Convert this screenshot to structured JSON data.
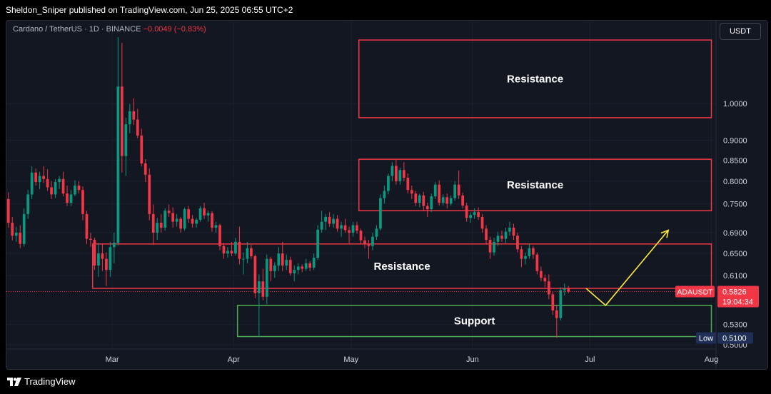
{
  "header": {
    "publish_text": "Sheldon_Sniper published on TradingView.com, Jun 25, 2025 06:55 UTC+2"
  },
  "legend": {
    "symbol": "Cardano / TetherUS · 1D · BINANCE",
    "change": "−0.0049 (−0.83%)"
  },
  "currency_button": "USDT",
  "branding": {
    "logo_text": "TradingView"
  },
  "chart_data": {
    "type": "candlestick",
    "symbol": "ADAUSDT",
    "exchange": "BINANCE",
    "timeframe": "1D",
    "x_ticks": [
      "Mar",
      "Apr",
      "May",
      "Jun",
      "Jul",
      "Aug"
    ],
    "y_scale": "log",
    "y_ticks": [
      "1.0000",
      "0.9000",
      "0.8500",
      "0.8000",
      "0.7500",
      "0.6900",
      "0.6500",
      "0.6100",
      "0.5300",
      "0.5000"
    ],
    "ylim": [
      0.495,
      1.22
    ],
    "x_range": [
      "2025-02-02",
      "2025-08-02"
    ],
    "last_price": {
      "label": "ADAUSDT",
      "value": "0.5826",
      "countdown": "19:04:34"
    },
    "low_marker": {
      "label": "Low",
      "value": "0.5100"
    },
    "zones": [
      {
        "label": "Resistance",
        "type": "resistance",
        "start": "2025-05-03",
        "end": "2025-08-01",
        "top": 1.2,
        "bottom": 0.96,
        "color": "#f23645"
      },
      {
        "label": "Resistance",
        "type": "resistance",
        "start": "2025-05-03",
        "end": "2025-08-01",
        "top": 0.852,
        "bottom": 0.735,
        "color": "#f23645"
      },
      {
        "label": "Resistance",
        "type": "resistance",
        "start": "2025-02-24",
        "end": "2025-08-01",
        "top": 0.668,
        "bottom": 0.588,
        "color": "#f23645"
      },
      {
        "label": "Support",
        "type": "support",
        "start": "2025-04-02",
        "end": "2025-08-01",
        "top": 0.56,
        "bottom": 0.512,
        "color": "#4caf50"
      }
    ],
    "projection": {
      "color": "#ffeb3b",
      "points": [
        [
          "2025-06-30",
          0.588
        ],
        [
          "2025-07-05",
          0.56
        ],
        [
          "2025-07-21",
          0.695
        ]
      ]
    },
    "candles": [
      [
        "2025-02-02",
        0.76,
        0.775,
        0.7,
        0.71
      ],
      [
        "2025-02-03",
        0.71,
        0.722,
        0.675,
        0.684
      ],
      [
        "2025-02-04",
        0.684,
        0.702,
        0.672,
        0.69
      ],
      [
        "2025-02-05",
        0.69,
        0.705,
        0.66,
        0.668
      ],
      [
        "2025-02-06",
        0.668,
        0.74,
        0.663,
        0.728
      ],
      [
        "2025-02-07",
        0.728,
        0.78,
        0.718,
        0.77
      ],
      [
        "2025-02-08",
        0.77,
        0.835,
        0.76,
        0.82
      ],
      [
        "2025-02-09",
        0.82,
        0.83,
        0.79,
        0.798
      ],
      [
        "2025-02-10",
        0.798,
        0.822,
        0.782,
        0.812
      ],
      [
        "2025-02-11",
        0.812,
        0.835,
        0.796,
        0.805
      ],
      [
        "2025-02-12",
        0.805,
        0.828,
        0.778,
        0.786
      ],
      [
        "2025-02-13",
        0.786,
        0.8,
        0.76,
        0.77
      ],
      [
        "2025-02-14",
        0.77,
        0.805,
        0.762,
        0.798
      ],
      [
        "2025-02-15",
        0.798,
        0.812,
        0.782,
        0.805
      ],
      [
        "2025-02-16",
        0.805,
        0.822,
        0.766,
        0.772
      ],
      [
        "2025-02-17",
        0.772,
        0.79,
        0.745,
        0.752
      ],
      [
        "2025-02-18",
        0.752,
        0.78,
        0.745,
        0.77
      ],
      [
        "2025-02-19",
        0.77,
        0.802,
        0.766,
        0.79
      ],
      [
        "2025-02-20",
        0.79,
        0.8,
        0.772,
        0.78
      ],
      [
        "2025-02-21",
        0.78,
        0.788,
        0.715,
        0.728
      ],
      [
        "2025-02-22",
        0.728,
        0.735,
        0.668,
        0.678
      ],
      [
        "2025-02-23",
        0.678,
        0.69,
        0.662,
        0.676
      ],
      [
        "2025-02-24",
        0.676,
        0.68,
        0.62,
        0.628
      ],
      [
        "2025-02-25",
        0.628,
        0.67,
        0.608,
        0.65
      ],
      [
        "2025-02-26",
        0.65,
        0.668,
        0.618,
        0.64
      ],
      [
        "2025-02-27",
        0.64,
        0.652,
        0.592,
        0.62
      ],
      [
        "2025-02-28",
        0.62,
        0.672,
        0.608,
        0.662
      ],
      [
        "2025-03-01",
        0.662,
        0.69,
        0.632,
        0.67
      ],
      [
        "2025-03-02",
        0.67,
        1.21,
        0.665,
        1.05
      ],
      [
        "2025-03-03",
        1.05,
        1.19,
        0.82,
        0.86
      ],
      [
        "2025-03-04",
        0.86,
        0.96,
        0.812,
        0.942
      ],
      [
        "2025-03-05",
        0.942,
        0.998,
        0.918,
        0.978
      ],
      [
        "2025-03-06",
        0.978,
        1.015,
        0.94,
        0.955
      ],
      [
        "2025-03-07",
        0.955,
        0.985,
        0.905,
        0.912
      ],
      [
        "2025-03-08",
        0.912,
        0.93,
        0.835,
        0.842
      ],
      [
        "2025-03-09",
        0.842,
        0.852,
        0.798,
        0.815
      ],
      [
        "2025-03-10",
        0.815,
        0.83,
        0.715,
        0.728
      ],
      [
        "2025-03-11",
        0.728,
        0.748,
        0.666,
        0.69
      ],
      [
        "2025-03-12",
        0.69,
        0.72,
        0.676,
        0.71
      ],
      [
        "2025-03-13",
        0.71,
        0.728,
        0.69,
        0.7
      ],
      [
        "2025-03-14",
        0.7,
        0.74,
        0.694,
        0.735
      ],
      [
        "2025-03-15",
        0.735,
        0.748,
        0.722,
        0.73
      ],
      [
        "2025-03-16",
        0.73,
        0.742,
        0.7,
        0.712
      ],
      [
        "2025-03-17",
        0.712,
        0.728,
        0.702,
        0.718
      ],
      [
        "2025-03-18",
        0.718,
        0.722,
        0.69,
        0.698
      ],
      [
        "2025-03-19",
        0.698,
        0.742,
        0.694,
        0.738
      ],
      [
        "2025-03-20",
        0.738,
        0.745,
        0.71,
        0.718
      ],
      [
        "2025-03-21",
        0.718,
        0.726,
        0.7,
        0.708
      ],
      [
        "2025-03-22",
        0.708,
        0.72,
        0.7,
        0.716
      ],
      [
        "2025-03-23",
        0.716,
        0.745,
        0.712,
        0.74
      ],
      [
        "2025-03-24",
        0.74,
        0.752,
        0.718,
        0.725
      ],
      [
        "2025-03-25",
        0.725,
        0.735,
        0.712,
        0.73
      ],
      [
        "2025-03-26",
        0.73,
        0.734,
        0.692,
        0.7
      ],
      [
        "2025-03-27",
        0.7,
        0.712,
        0.69,
        0.705
      ],
      [
        "2025-03-28",
        0.705,
        0.708,
        0.656,
        0.664
      ],
      [
        "2025-03-29",
        0.664,
        0.67,
        0.64,
        0.65
      ],
      [
        "2025-03-30",
        0.65,
        0.662,
        0.642,
        0.655
      ],
      [
        "2025-03-31",
        0.655,
        0.672,
        0.645,
        0.65
      ],
      [
        "2025-04-01",
        0.65,
        0.68,
        0.646,
        0.672
      ],
      [
        "2025-04-02",
        0.672,
        0.702,
        0.63,
        0.64
      ],
      [
        "2025-04-03",
        0.64,
        0.652,
        0.612,
        0.64
      ],
      [
        "2025-04-04",
        0.64,
        0.672,
        0.632,
        0.66
      ],
      [
        "2025-04-05",
        0.66,
        0.666,
        0.64,
        0.645
      ],
      [
        "2025-04-06",
        0.645,
        0.648,
        0.572,
        0.58
      ],
      [
        "2025-04-07",
        0.58,
        0.612,
        0.512,
        0.6
      ],
      [
        "2025-04-08",
        0.6,
        0.622,
        0.568,
        0.574
      ],
      [
        "2025-04-09",
        0.574,
        0.648,
        0.562,
        0.64
      ],
      [
        "2025-04-10",
        0.64,
        0.644,
        0.6,
        0.618
      ],
      [
        "2025-04-11",
        0.618,
        0.634,
        0.606,
        0.628
      ],
      [
        "2025-04-12",
        0.628,
        0.662,
        0.618,
        0.65
      ],
      [
        "2025-04-13",
        0.65,
        0.672,
        0.618,
        0.628
      ],
      [
        "2025-04-14",
        0.628,
        0.648,
        0.62,
        0.638
      ],
      [
        "2025-04-15",
        0.638,
        0.644,
        0.61,
        0.614
      ],
      [
        "2025-04-16",
        0.614,
        0.628,
        0.6,
        0.62
      ],
      [
        "2025-04-17",
        0.62,
        0.632,
        0.612,
        0.626
      ],
      [
        "2025-04-18",
        0.626,
        0.63,
        0.616,
        0.622
      ],
      [
        "2025-04-19",
        0.622,
        0.64,
        0.618,
        0.632
      ],
      [
        "2025-04-20",
        0.632,
        0.636,
        0.618,
        0.624
      ],
      [
        "2025-04-21",
        0.624,
        0.65,
        0.62,
        0.642
      ],
      [
        "2025-04-22",
        0.642,
        0.705,
        0.638,
        0.696
      ],
      [
        "2025-04-23",
        0.696,
        0.735,
        0.69,
        0.712
      ],
      [
        "2025-04-24",
        0.712,
        0.728,
        0.695,
        0.722
      ],
      [
        "2025-04-25",
        0.722,
        0.732,
        0.702,
        0.708
      ],
      [
        "2025-04-26",
        0.708,
        0.728,
        0.7,
        0.718
      ],
      [
        "2025-04-27",
        0.718,
        0.726,
        0.692,
        0.698
      ],
      [
        "2025-04-28",
        0.698,
        0.712,
        0.682,
        0.705
      ],
      [
        "2025-04-29",
        0.705,
        0.718,
        0.69,
        0.695
      ],
      [
        "2025-04-30",
        0.695,
        0.702,
        0.67,
        0.69
      ],
      [
        "2025-05-01",
        0.69,
        0.712,
        0.682,
        0.705
      ],
      [
        "2025-05-02",
        0.705,
        0.712,
        0.688,
        0.694
      ],
      [
        "2025-05-03",
        0.694,
        0.698,
        0.668,
        0.675
      ],
      [
        "2025-05-04",
        0.675,
        0.682,
        0.66,
        0.668
      ],
      [
        "2025-05-05",
        0.668,
        0.676,
        0.64,
        0.664
      ],
      [
        "2025-05-06",
        0.664,
        0.69,
        0.656,
        0.682
      ],
      [
        "2025-05-07",
        0.682,
        0.705,
        0.676,
        0.698
      ],
      [
        "2025-05-08",
        0.698,
        0.77,
        0.694,
        0.762
      ],
      [
        "2025-05-09",
        0.762,
        0.79,
        0.75,
        0.778
      ],
      [
        "2025-05-10",
        0.778,
        0.818,
        0.77,
        0.812
      ],
      [
        "2025-05-11",
        0.812,
        0.845,
        0.8,
        0.836
      ],
      [
        "2025-05-12",
        0.836,
        0.85,
        0.792,
        0.8
      ],
      [
        "2025-05-13",
        0.8,
        0.832,
        0.792,
        0.826
      ],
      [
        "2025-05-14",
        0.826,
        0.845,
        0.8,
        0.808
      ],
      [
        "2025-05-15",
        0.808,
        0.818,
        0.772,
        0.78
      ],
      [
        "2025-05-16",
        0.78,
        0.79,
        0.76,
        0.772
      ],
      [
        "2025-05-17",
        0.772,
        0.778,
        0.745,
        0.752
      ],
      [
        "2025-05-18",
        0.752,
        0.772,
        0.742,
        0.768
      ],
      [
        "2025-05-19",
        0.768,
        0.776,
        0.735,
        0.745
      ],
      [
        "2025-05-20",
        0.745,
        0.752,
        0.722,
        0.738
      ],
      [
        "2025-05-21",
        0.738,
        0.772,
        0.732,
        0.766
      ],
      [
        "2025-05-22",
        0.766,
        0.798,
        0.76,
        0.792
      ],
      [
        "2025-05-23",
        0.792,
        0.802,
        0.746,
        0.752
      ],
      [
        "2025-05-24",
        0.752,
        0.77,
        0.746,
        0.764
      ],
      [
        "2025-05-25",
        0.764,
        0.772,
        0.74,
        0.75
      ],
      [
        "2025-05-26",
        0.75,
        0.768,
        0.746,
        0.762
      ],
      [
        "2025-05-27",
        0.762,
        0.8,
        0.756,
        0.792
      ],
      [
        "2025-05-28",
        0.792,
        0.825,
        0.76,
        0.768
      ],
      [
        "2025-05-29",
        0.768,
        0.774,
        0.74,
        0.746
      ],
      [
        "2025-05-30",
        0.746,
        0.752,
        0.712,
        0.72
      ],
      [
        "2025-05-31",
        0.72,
        0.732,
        0.71,
        0.726
      ],
      [
        "2025-06-01",
        0.726,
        0.74,
        0.718,
        0.732
      ],
      [
        "2025-06-02",
        0.732,
        0.742,
        0.716,
        0.722
      ],
      [
        "2025-06-03",
        0.722,
        0.728,
        0.69,
        0.698
      ],
      [
        "2025-06-04",
        0.698,
        0.705,
        0.668,
        0.676
      ],
      [
        "2025-06-05",
        0.676,
        0.682,
        0.64,
        0.652
      ],
      [
        "2025-06-06",
        0.652,
        0.68,
        0.646,
        0.672
      ],
      [
        "2025-06-07",
        0.672,
        0.692,
        0.664,
        0.684
      ],
      [
        "2025-06-08",
        0.684,
        0.694,
        0.672,
        0.678
      ],
      [
        "2025-06-09",
        0.678,
        0.7,
        0.67,
        0.692
      ],
      [
        "2025-06-10",
        0.692,
        0.712,
        0.684,
        0.7
      ],
      [
        "2025-06-11",
        0.7,
        0.708,
        0.676,
        0.684
      ],
      [
        "2025-06-12",
        0.684,
        0.69,
        0.652,
        0.658
      ],
      [
        "2025-06-13",
        0.658,
        0.664,
        0.625,
        0.64
      ],
      [
        "2025-06-14",
        0.64,
        0.652,
        0.63,
        0.645
      ],
      [
        "2025-06-15",
        0.645,
        0.668,
        0.64,
        0.66
      ],
      [
        "2025-06-16",
        0.66,
        0.664,
        0.64,
        0.648
      ],
      [
        "2025-06-17",
        0.648,
        0.652,
        0.612,
        0.618
      ],
      [
        "2025-06-18",
        0.618,
        0.626,
        0.6,
        0.606
      ],
      [
        "2025-06-19",
        0.606,
        0.612,
        0.59,
        0.6
      ],
      [
        "2025-06-20",
        0.6,
        0.612,
        0.57,
        0.578
      ],
      [
        "2025-06-21",
        0.578,
        0.582,
        0.545,
        0.552
      ],
      [
        "2025-06-22",
        0.552,
        0.56,
        0.51,
        0.54
      ],
      [
        "2025-06-23",
        0.54,
        0.59,
        0.536,
        0.585
      ],
      [
        "2025-06-24",
        0.585,
        0.596,
        0.576,
        0.5875
      ],
      [
        "2025-06-25",
        0.5875,
        0.592,
        0.58,
        0.5826
      ]
    ]
  }
}
